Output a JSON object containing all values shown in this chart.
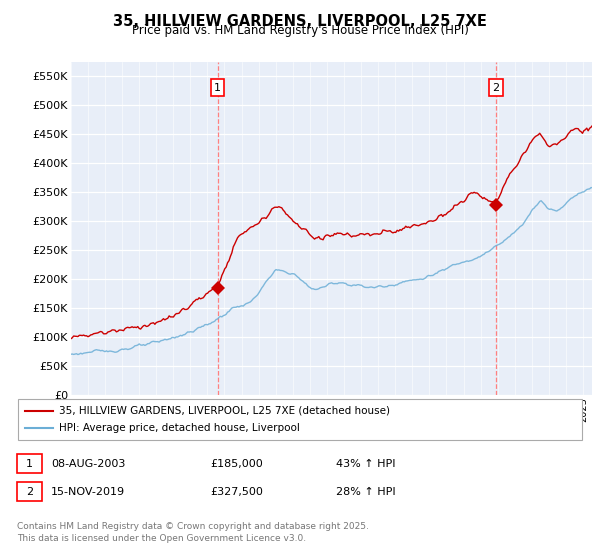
{
  "title": "35, HILLVIEW GARDENS, LIVERPOOL, L25 7XE",
  "subtitle": "Price paid vs. HM Land Registry's House Price Index (HPI)",
  "ylabel_ticks": [
    "£0",
    "£50K",
    "£100K",
    "£150K",
    "£200K",
    "£250K",
    "£300K",
    "£350K",
    "£400K",
    "£450K",
    "£500K",
    "£550K"
  ],
  "ytick_values": [
    0,
    50000,
    100000,
    150000,
    200000,
    250000,
    300000,
    350000,
    400000,
    450000,
    500000,
    550000
  ],
  "ylim": [
    0,
    575000
  ],
  "xlim_start": 1995.0,
  "xlim_end": 2025.5,
  "hpi_color": "#6baed6",
  "price_color": "#cc0000",
  "transaction1_date": 2003.6,
  "transaction1_price": 185000,
  "transaction1_label": "1",
  "transaction2_date": 2019.88,
  "transaction2_price": 327500,
  "transaction2_label": "2",
  "legend_line1": "35, HILLVIEW GARDENS, LIVERPOOL, L25 7XE (detached house)",
  "legend_line2": "HPI: Average price, detached house, Liverpool",
  "footnote1_label": "1",
  "footnote1_date": "08-AUG-2003",
  "footnote1_price": "£185,000",
  "footnote1_hpi": "43% ↑ HPI",
  "footnote2_label": "2",
  "footnote2_date": "15-NOV-2019",
  "footnote2_price": "£327,500",
  "footnote2_hpi": "28% ↑ HPI",
  "copyright_text": "Contains HM Land Registry data © Crown copyright and database right 2025.\nThis data is licensed under the Open Government Licence v3.0.",
  "vline_color": "#ff8080",
  "background_color": "#e8eef8"
}
